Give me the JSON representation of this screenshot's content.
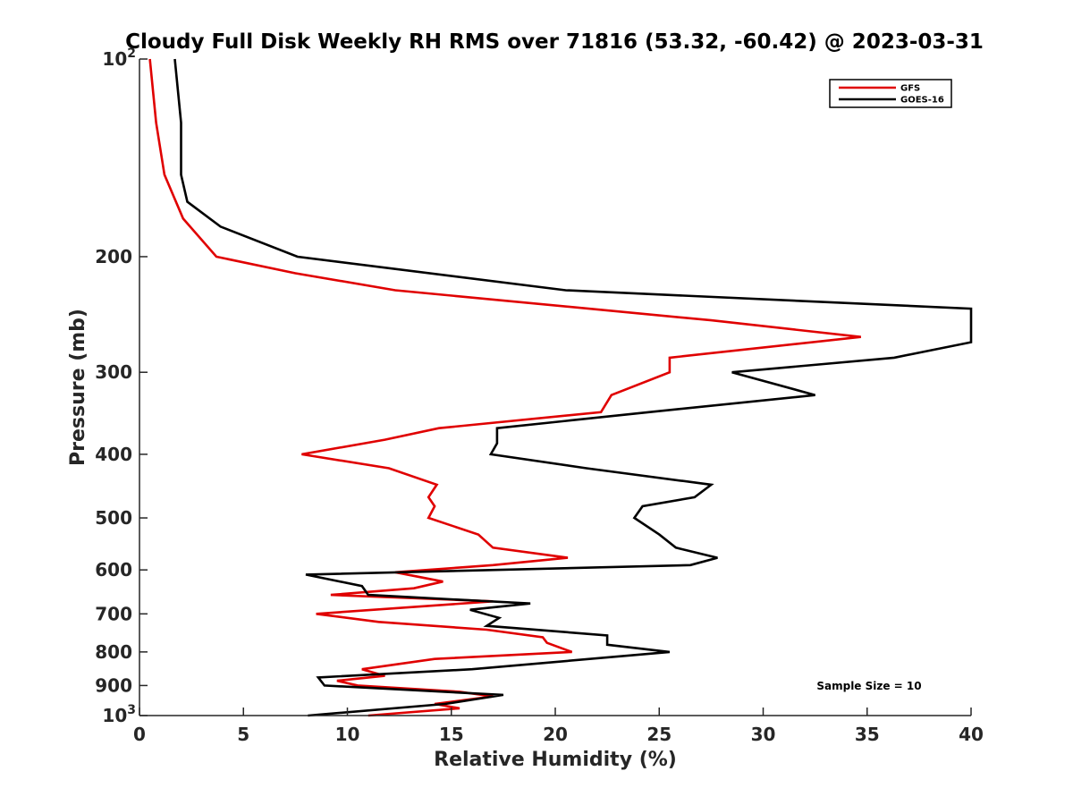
{
  "chart_data": {
    "type": "line",
    "title": "Cloudy Full Disk Weekly RH RMS over 71816 (53.32, -60.42) @ 2023-03-31",
    "xlabel": "Relative Humidity (%)",
    "ylabel": "Pressure (mb)",
    "xlim": [
      0,
      40
    ],
    "ylim": [
      100,
      1000
    ],
    "y_scale": "log",
    "y_reversed": true,
    "x_ticks": [
      0,
      5,
      10,
      15,
      20,
      25,
      30,
      35,
      40
    ],
    "y_ticks": [
      {
        "value": 100,
        "base": "10",
        "exp": "2"
      },
      {
        "value": 200,
        "label": "200"
      },
      {
        "value": 300,
        "label": "300"
      },
      {
        "value": 400,
        "label": "400"
      },
      {
        "value": 500,
        "label": "500"
      },
      {
        "value": 600,
        "label": "600"
      },
      {
        "value": 700,
        "label": "700"
      },
      {
        "value": 800,
        "label": "800"
      },
      {
        "value": 900,
        "label": "900"
      },
      {
        "value": 1000,
        "base": "10",
        "exp": "3"
      }
    ],
    "grid": false,
    "legend_position": "top-right",
    "annotation": "Sample Size = 10",
    "series": [
      {
        "name": "GFS",
        "color": "#e00000",
        "points": [
          [
            0.5,
            100
          ],
          [
            0.8,
            125
          ],
          [
            1.2,
            150
          ],
          [
            2.1,
            175
          ],
          [
            3.7,
            200
          ],
          [
            7.5,
            212
          ],
          [
            12.3,
            225
          ],
          [
            27.5,
            250
          ],
          [
            34.7,
            265
          ],
          [
            25.5,
            285
          ],
          [
            25.5,
            300
          ],
          [
            22.7,
            325
          ],
          [
            22.2,
            345
          ],
          [
            14.4,
            365
          ],
          [
            11.8,
            380
          ],
          [
            7.8,
            400
          ],
          [
            12.0,
            420
          ],
          [
            14.3,
            445
          ],
          [
            13.9,
            465
          ],
          [
            14.2,
            480
          ],
          [
            13.9,
            500
          ],
          [
            16.3,
            530
          ],
          [
            17.0,
            555
          ],
          [
            20.6,
            575
          ],
          [
            17.0,
            590
          ],
          [
            12.3,
            605
          ],
          [
            14.6,
            625
          ],
          [
            13.2,
            640
          ],
          [
            9.2,
            655
          ],
          [
            17.0,
            670
          ],
          [
            8.5,
            700
          ],
          [
            11.5,
            720
          ],
          [
            16.7,
            740
          ],
          [
            19.4,
            760
          ],
          [
            19.6,
            775
          ],
          [
            20.8,
            800
          ],
          [
            14.2,
            820
          ],
          [
            10.7,
            850
          ],
          [
            11.8,
            870
          ],
          [
            9.5,
            885
          ],
          [
            10.5,
            900
          ],
          [
            15.4,
            920
          ],
          [
            17.0,
            935
          ],
          [
            14.2,
            960
          ],
          [
            15.4,
            975
          ],
          [
            11.0,
            1000
          ]
        ]
      },
      {
        "name": "GOES-16",
        "color": "#000000",
        "points": [
          [
            1.7,
            100
          ],
          [
            2.0,
            125
          ],
          [
            2.0,
            150
          ],
          [
            2.3,
            165
          ],
          [
            3.9,
            180
          ],
          [
            7.6,
            200
          ],
          [
            20.5,
            225
          ],
          [
            40.0,
            240
          ],
          [
            40.0,
            270
          ],
          [
            36.3,
            285
          ],
          [
            28.5,
            300
          ],
          [
            32.5,
            325
          ],
          [
            24.5,
            345
          ],
          [
            17.2,
            365
          ],
          [
            17.2,
            385
          ],
          [
            16.9,
            400
          ],
          [
            21.5,
            420
          ],
          [
            27.5,
            445
          ],
          [
            26.7,
            465
          ],
          [
            24.2,
            480
          ],
          [
            23.8,
            500
          ],
          [
            25.0,
            530
          ],
          [
            25.8,
            555
          ],
          [
            27.8,
            575
          ],
          [
            26.5,
            590
          ],
          [
            8.0,
            610
          ],
          [
            10.7,
            635
          ],
          [
            11.0,
            655
          ],
          [
            18.8,
            675
          ],
          [
            15.9,
            690
          ],
          [
            17.3,
            710
          ],
          [
            16.7,
            730
          ],
          [
            22.5,
            755
          ],
          [
            22.5,
            780
          ],
          [
            25.5,
            800
          ],
          [
            16.0,
            850
          ],
          [
            8.6,
            875
          ],
          [
            8.9,
            900
          ],
          [
            17.5,
            930
          ],
          [
            14.7,
            960
          ],
          [
            8.1,
            1000
          ]
        ]
      }
    ]
  }
}
